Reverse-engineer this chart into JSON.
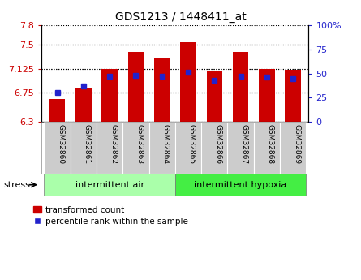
{
  "title": "GDS1213 / 1448411_at",
  "samples": [
    "GSM32860",
    "GSM32861",
    "GSM32862",
    "GSM32863",
    "GSM32864",
    "GSM32865",
    "GSM32866",
    "GSM32867",
    "GSM32868",
    "GSM32869"
  ],
  "transformed_count": [
    6.65,
    6.83,
    7.125,
    7.38,
    7.3,
    7.54,
    7.09,
    7.38,
    7.12,
    7.11
  ],
  "percentile_rank": [
    30,
    37,
    47,
    48,
    47,
    51,
    43,
    47,
    46,
    45
  ],
  "y_min": 6.3,
  "y_max": 7.8,
  "grid_ticks": [
    6.75,
    7.125,
    7.5
  ],
  "left_tick_labels": [
    "6.3",
    "6.75",
    "7.125",
    "7.5",
    "7.8"
  ],
  "left_tick_vals": [
    6.3,
    6.75,
    7.125,
    7.5,
    7.8
  ],
  "right_y_ticks_pct": [
    0,
    25,
    50,
    75,
    100
  ],
  "right_y_tick_labels": [
    "0",
    "25",
    "50",
    "75",
    "100%"
  ],
  "bar_color": "#cc0000",
  "dot_color": "#2222cc",
  "bar_base": 6.3,
  "group1_label": "intermittent air",
  "group2_label": "intermittent hypoxia",
  "stress_label": "stress",
  "legend_bar_label": "transformed count",
  "legend_dot_label": "percentile rank within the sample",
  "group1_bg": "#aaffaa",
  "group2_bg": "#44ee44",
  "sample_bg": "#cccccc",
  "right_y_color": "#2222cc",
  "left_y_color": "#cc0000",
  "bar_width": 0.6
}
